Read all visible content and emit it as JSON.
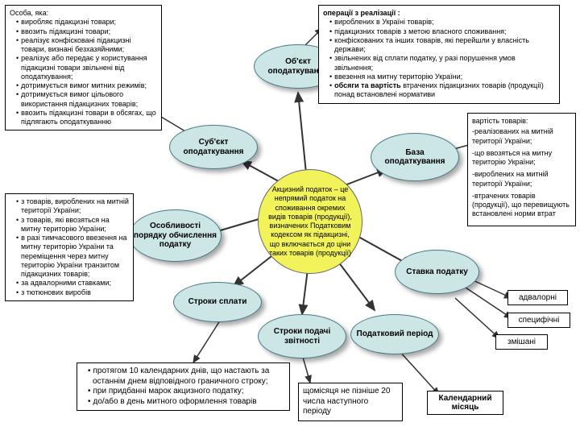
{
  "center": {
    "text": "Акцизний податок – це непрямий податок на споживання окремих видів товарів (продукції), визначених Податковим кодексом як підакцизні, що включається до ціни таких товарів (продукції)",
    "bg": "#f2f25a"
  },
  "nodes": {
    "obj": {
      "label": "Об'єкт оподаткування"
    },
    "subj": {
      "label": "Суб'єкт оподаткування"
    },
    "base": {
      "label": "База оподаткування"
    },
    "feat": {
      "label": "Особливості порядку обчислення податку"
    },
    "rate": {
      "label": "Ставка податку"
    },
    "pay": {
      "label": "Строки сплати"
    },
    "report": {
      "label": "Строки подачі звітності"
    },
    "period": {
      "label": "Податковий період"
    }
  },
  "boxes": {
    "osoba": {
      "title": "Особа, яка:",
      "items": [
        "виробляє підакцизні товари;",
        "ввозить підакцизні товари;",
        "реалізує конфісковані підакцизні товари, визнані безхазяйними;",
        "реалізує або передає у користування підакцизні товари звільнені від оподаткування;",
        "дотримується вимог митних режимів;",
        "дотримується вимог цільового використання підакцизних товарів;",
        "ввозить підакцизні товари в обсягах, що підлягають оподаткуванню"
      ]
    },
    "oper": {
      "title": "операції з реалізації :",
      "items": [
        "вироблених в Україні товарів;",
        "підакцизних товарів з метою власного споживання;",
        "конфіскованих та інших товарів, які перейшли у власність держави;",
        "звільнених від сплати податку, у разі порушення умов звільнення;",
        "ввезення на митну територію України;",
        "<b>обсяги та вартість</b> втрачених підакцизних товарів (продукції) понад встановлені нормативи"
      ]
    },
    "vart": {
      "title": "вартість товарів:",
      "items": [
        "-реалізованих на митній території України;",
        "-що ввозяться на митну територію України;",
        "-вироблених на митній території України;",
        "-втрачених товарів (продукції), що перевищують встановлені норми втрат"
      ]
    },
    "ztov": {
      "items": [
        "з товарів, вироблених на митній території України;",
        "з товарів, які ввозяться на митну територію України;",
        "в разі тимчасового ввезення на митну територію України та переміщення через митну територію України транзитом підакцизних товарів;",
        "за адвалорними ставками;",
        "з тютюнових виробів"
      ]
    },
    "prot": {
      "items": [
        "протягом 10 календарних днів, що настають за останнім днем відповідного граничного строку;",
        "при придбанні марок акцизного податку;",
        "до/або в день митного оформлення товарів"
      ]
    },
    "month": {
      "text": "щомісяця не пізніше 20 числа наступного періоду"
    }
  },
  "smalls": {
    "adv": {
      "label": "адвалорні"
    },
    "spec": {
      "label": "специфічні"
    },
    "zmis": {
      "label": "змішані"
    },
    "cal": {
      "label": "Календарний місяць"
    }
  },
  "colors": {
    "node_bg": "#cce5e5",
    "node_border": "#4a7a8a",
    "arrow": "#333"
  }
}
